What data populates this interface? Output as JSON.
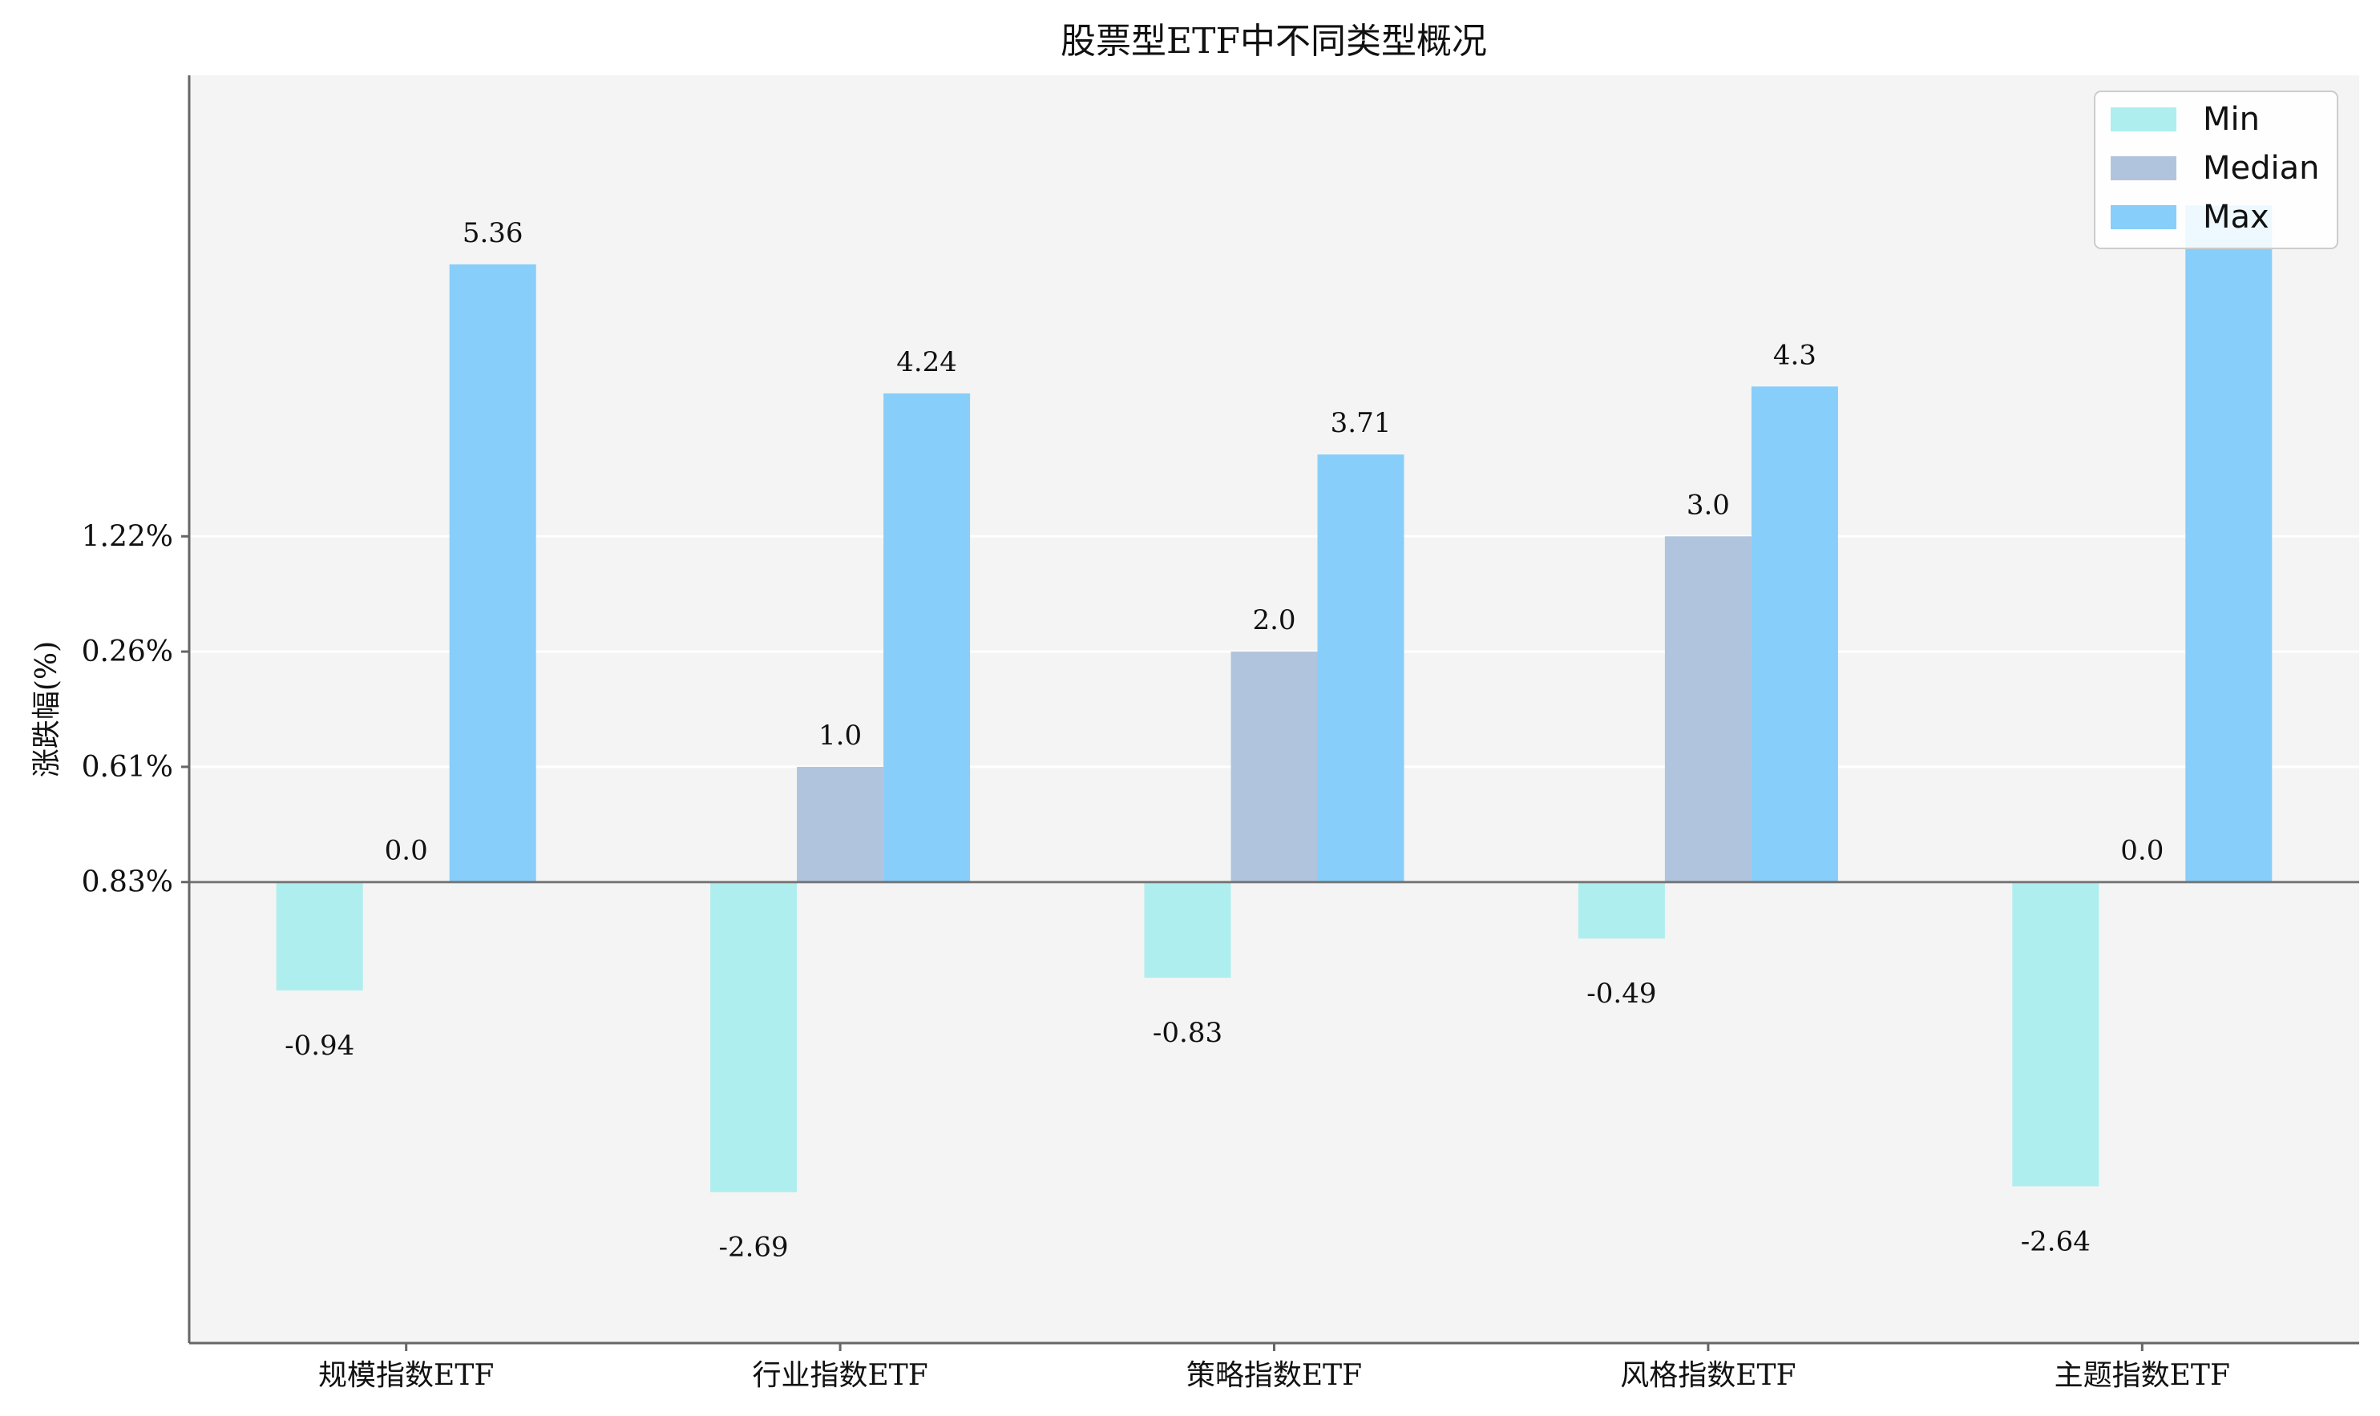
{
  "chart_data": {
    "type": "bar",
    "title": "股票型ETF中不同类型概况",
    "xlabel": "",
    "ylabel": "涨跌幅(%)",
    "categories": [
      "规模指数ETF",
      "行业指数ETF",
      "策略指数ETF",
      "风格指数ETF",
      "主题指数ETF"
    ],
    "series": [
      {
        "name": "Min",
        "color": "#afeeee",
        "values": [
          -0.94,
          -2.69,
          -0.83,
          -0.49,
          -2.64
        ],
        "labels": [
          "-0.94",
          "-2.69",
          "-0.83",
          "-0.49",
          "-2.64"
        ]
      },
      {
        "name": "Median",
        "color": "#b0c4de",
        "values": [
          0.0,
          1.0,
          2.0,
          3.0,
          0.0
        ],
        "labels": [
          "0.0",
          "1.0",
          "2.0",
          "3.0",
          "0.0"
        ]
      },
      {
        "name": "Max",
        "color": "#87cefa",
        "values": [
          5.36,
          4.24,
          3.71,
          4.3,
          5.87
        ],
        "labels": [
          "5.36",
          "4.24",
          "3.71",
          "4.3",
          ""
        ]
      }
    ],
    "yticks": [
      {
        "value": 0,
        "label": "0.83%"
      },
      {
        "value": 1,
        "label": "0.61%"
      },
      {
        "value": 2,
        "label": "0.26%"
      },
      {
        "value": 3,
        "label": "1.22%"
      }
    ],
    "ylim": [
      -4.0,
      7.0
    ],
    "grid": true,
    "legend_position": "top-right",
    "background": "#f4f4f4"
  }
}
